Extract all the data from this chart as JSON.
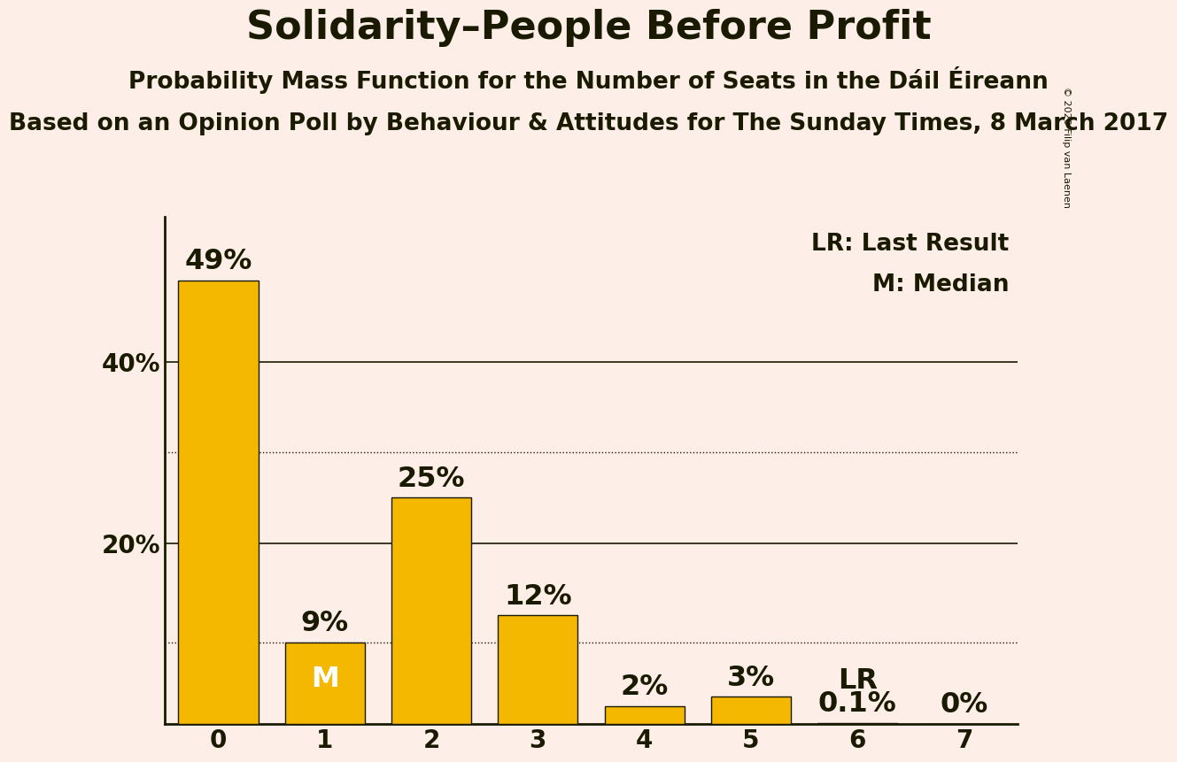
{
  "title": "Solidarity–People Before Profit",
  "subtitle1": "Probability Mass Function for the Number of Seats in the Dáil Éireann",
  "subtitle2": "Based on an Opinion Poll by Behaviour & Attitudes for The Sunday Times, 8 March 2017",
  "copyright": "© 2020 Filip van Laenen",
  "categories": [
    0,
    1,
    2,
    3,
    4,
    5,
    6,
    7
  ],
  "values": [
    0.49,
    0.09,
    0.25,
    0.12,
    0.02,
    0.03,
    0.001,
    0.0
  ],
  "labels": [
    "49%",
    "9%",
    "25%",
    "12%",
    "2%",
    "3%",
    "0.1%",
    "0%"
  ],
  "bar_color": "#F5B800",
  "bar_edge_color": "#1a1a00",
  "background_color": "#FDEEE8",
  "text_color": "#1a1a00",
  "median_seat": 1,
  "lr_seat": 6,
  "dotted_line_values": [
    0.09,
    0.3
  ],
  "solid_line_values": [
    0.2,
    0.4
  ],
  "yticks": [
    0.2,
    0.4
  ],
  "ytick_labels": [
    "20%",
    "40%"
  ],
  "ylim": [
    0,
    0.56
  ],
  "xlim": [
    -0.5,
    7.5
  ],
  "legend_lr": "LR: Last Result",
  "legend_m": "M: Median",
  "title_fontsize": 32,
  "subtitle1_fontsize": 19,
  "subtitle2_fontsize": 19,
  "tick_fontsize": 20,
  "annotation_fontsize": 23,
  "legend_fontsize": 19,
  "bar_width": 0.75
}
